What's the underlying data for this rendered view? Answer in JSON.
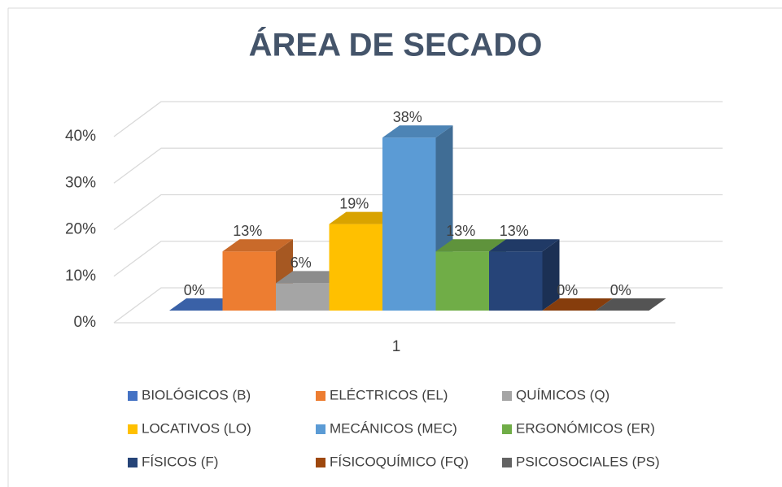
{
  "chart_data": {
    "type": "bar3d",
    "title": "ÁREA DE SECADO",
    "categories": [
      "1"
    ],
    "series": [
      {
        "name": "BIOLÓGICOS (B)",
        "color": "#4472c4",
        "values": [
          0
        ],
        "value_labels": [
          "0%"
        ]
      },
      {
        "name": "ELÉCTRICOS (EL)",
        "color": "#ed7d31",
        "values": [
          13
        ],
        "value_labels": [
          "13%"
        ]
      },
      {
        "name": "QUÍMICOS (Q)",
        "color": "#a5a5a5",
        "values": [
          6
        ],
        "value_labels": [
          "6%"
        ]
      },
      {
        "name": "LOCATIVOS (LO)",
        "color": "#ffc000",
        "values": [
          19
        ],
        "value_labels": [
          "19%"
        ]
      },
      {
        "name": "MECÁNICOS (MEC)",
        "color": "#5b9bd5",
        "values": [
          38
        ],
        "value_labels": [
          "38%"
        ]
      },
      {
        "name": "ERGONÓMICOS (ER)",
        "color": "#70ad47",
        "values": [
          13
        ],
        "value_labels": [
          "13%"
        ]
      },
      {
        "name": "FÍSICOS (F)",
        "color": "#264478",
        "values": [
          13
        ],
        "value_labels": [
          "13%"
        ]
      },
      {
        "name": "FÍSICOQUÍMICO (FQ)",
        "color": "#9e480e",
        "values": [
          0
        ],
        "value_labels": [
          "0%"
        ]
      },
      {
        "name": "PSICOSOCIALES (PS)",
        "color": "#636363",
        "values": [
          0
        ],
        "value_labels": [
          "0%"
        ]
      }
    ],
    "ylim": [
      0,
      40
    ],
    "yticks": [
      {
        "value": 0,
        "label": "0%"
      },
      {
        "value": 10,
        "label": "10%"
      },
      {
        "value": 20,
        "label": "20%"
      },
      {
        "value": 30,
        "label": "30%"
      },
      {
        "value": 40,
        "label": "40%"
      }
    ],
    "grid": true,
    "legend": "bottom"
  }
}
